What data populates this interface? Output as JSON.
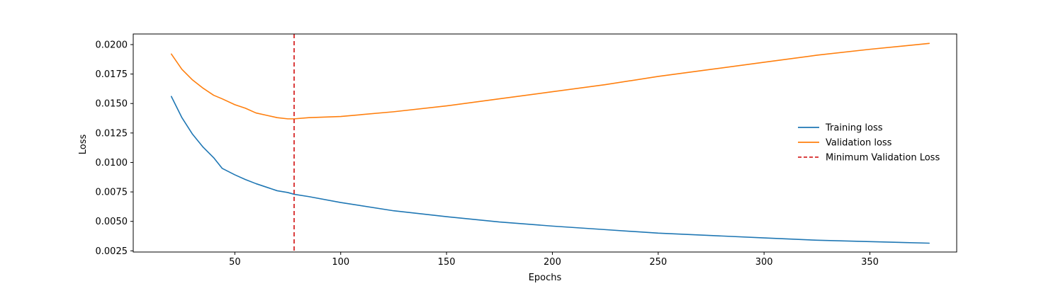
{
  "chart_data": {
    "type": "line",
    "title": "",
    "xlabel": "Epochs",
    "ylabel": "Loss",
    "xlim": [
      2,
      391
    ],
    "ylim": [
      0.0024,
      0.0209
    ],
    "x_ticks": [
      50,
      100,
      150,
      200,
      250,
      300,
      350
    ],
    "y_ticks": [
      0.0025,
      0.005,
      0.0075,
      0.01,
      0.0125,
      0.015,
      0.0175,
      0.02
    ],
    "x_tick_labels": [
      "50",
      "100",
      "150",
      "200",
      "250",
      "300",
      "350"
    ],
    "y_tick_labels": [
      "0.0025",
      "0.0050",
      "0.0075",
      "0.0100",
      "0.0125",
      "0.0150",
      "0.0175",
      "0.0200"
    ],
    "grid": false,
    "legend_position": "center-right",
    "x": [
      20,
      25,
      30,
      35,
      40,
      44,
      50,
      55,
      60,
      65,
      70,
      75,
      78,
      85,
      100,
      125,
      150,
      175,
      200,
      225,
      250,
      275,
      300,
      325,
      350,
      378
    ],
    "series": [
      {
        "name": "Training loss",
        "color": "#1f77b4",
        "style": "solid",
        "values": [
          0.0156,
          0.0138,
          0.0124,
          0.0113,
          0.0104,
          0.0095,
          0.00895,
          0.00855,
          0.0082,
          0.0079,
          0.0076,
          0.00745,
          0.0073,
          0.0071,
          0.0066,
          0.0059,
          0.0054,
          0.00495,
          0.0046,
          0.0043,
          0.004,
          0.0038,
          0.0036,
          0.0034,
          0.00328,
          0.00315
        ]
      },
      {
        "name": "Validation loss",
        "color": "#ff7f0e",
        "style": "solid",
        "values": [
          0.0192,
          0.0179,
          0.017,
          0.0163,
          0.0157,
          0.0154,
          0.0149,
          0.0146,
          0.0142,
          0.014,
          0.0138,
          0.0137,
          0.0137,
          0.0138,
          0.0139,
          0.0143,
          0.0148,
          0.0154,
          0.016,
          0.0166,
          0.0173,
          0.0179,
          0.0185,
          0.0191,
          0.0196,
          0.0201
        ]
      }
    ],
    "vlines": [
      {
        "name": "Minimum Validation Loss",
        "x": 78,
        "color": "#d62728",
        "style": "dashed"
      }
    ]
  }
}
